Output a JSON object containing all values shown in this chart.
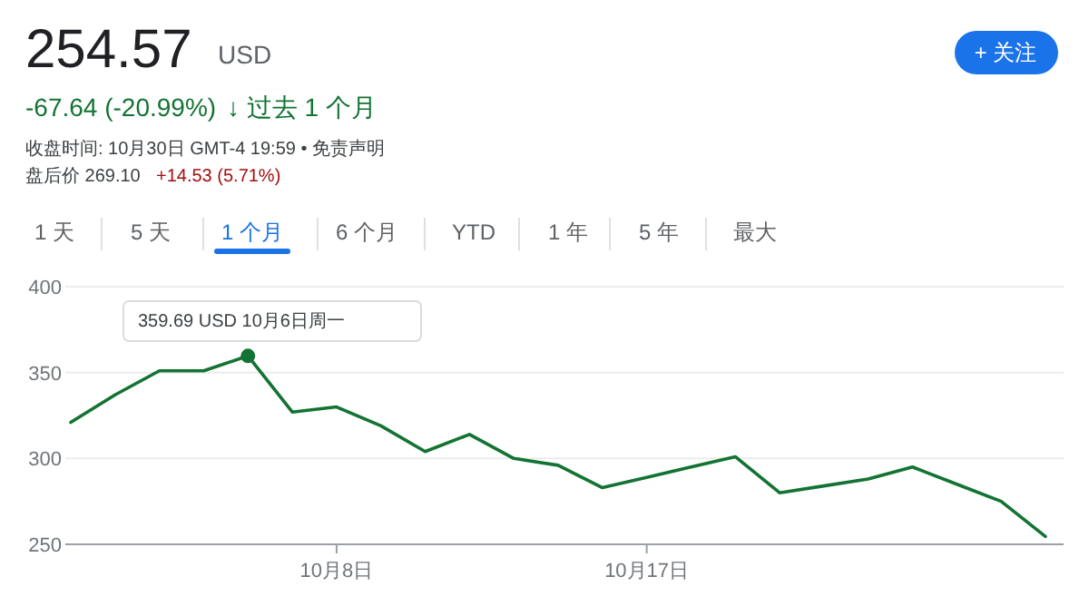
{
  "chart_data": {
    "type": "line",
    "categories": [
      null,
      null,
      null,
      null,
      null,
      null,
      "10月8日",
      null,
      null,
      null,
      null,
      null,
      null,
      "10月17日",
      null,
      null,
      null,
      null,
      null,
      null,
      null,
      null,
      null
    ],
    "series": [
      {
        "color": "#137333",
        "values": [
          321,
          337,
          351,
          351,
          359.69,
          327,
          330,
          319,
          304,
          314,
          300,
          296,
          283,
          289,
          295,
          301,
          280,
          284,
          288,
          295,
          285,
          275,
          254.57
        ]
      },
      {
        "type": "scatter",
        "color": "#137333",
        "values": [
          null,
          null,
          null,
          null,
          359.69,
          null,
          null,
          null,
          null,
          null,
          null,
          null,
          null,
          null,
          null,
          null,
          null,
          null,
          null,
          null,
          null,
          null,
          null
        ]
      }
    ],
    "ylim": [
      250,
      400
    ],
    "yticks": [
      250,
      300,
      350,
      400
    ],
    "grid": "y",
    "annotations": [
      "254.57",
      "USD",
      "-67.64 (-20.99%)",
      "↓ 过去 1 个月",
      "收盘时间: 10月30日 GMT-4 19:59 • 免责声明",
      "盘后价 269.10",
      "+14.53 (5.71%)",
      "+ 关注",
      "1 天",
      "5 天",
      "1 个月",
      "6 个月",
      "YTD",
      "1 年",
      "5 年",
      "最大",
      "359.69 USD  10月6日周一"
    ]
  }
}
